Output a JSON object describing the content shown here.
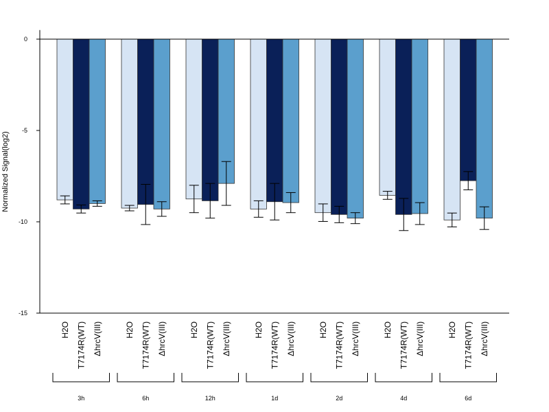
{
  "chart_data": {
    "type": "bar",
    "ylabel": "Normalized Signal(log2)",
    "ylim": [
      -15,
      0.5
    ],
    "yticks": [
      0,
      -5,
      -10,
      -15
    ],
    "groups": [
      "3h",
      "6h",
      "12h",
      "1d",
      "2d",
      "4d",
      "6d"
    ],
    "series": [
      {
        "name": "H2O",
        "color": "#d6e4f4",
        "values": [
          -8.8,
          -9.25,
          -8.75,
          -9.3,
          -9.5,
          -8.55,
          -9.9
        ],
        "errors": [
          0.22,
          0.15,
          0.75,
          0.45,
          0.48,
          0.22,
          0.38
        ]
      },
      {
        "name": "T7174R(WT)",
        "color": "#0a2058",
        "values": [
          -9.3,
          -9.05,
          -8.85,
          -8.9,
          -9.6,
          -9.6,
          -7.75
        ],
        "errors": [
          0.22,
          1.1,
          0.95,
          1.0,
          0.45,
          0.88,
          0.5
        ]
      },
      {
        "name": "ΔhrcV(III)",
        "color": "#5b9fcd",
        "values": [
          -9.0,
          -9.3,
          -7.9,
          -8.95,
          -9.8,
          -9.55,
          -9.8
        ],
        "errors": [
          0.15,
          0.4,
          1.2,
          0.55,
          0.3,
          0.6,
          0.62
        ]
      }
    ]
  }
}
